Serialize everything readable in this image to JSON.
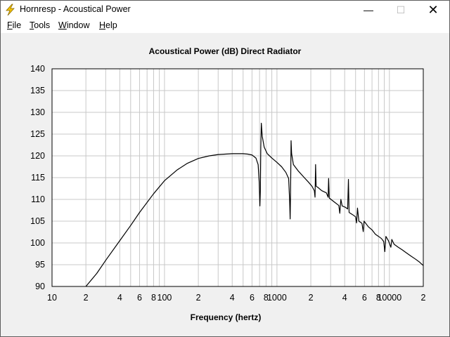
{
  "window": {
    "title": "Hornresp - Acoustical Power",
    "min_label": "—",
    "max_label": "☐",
    "close_label": "✕"
  },
  "menu": [
    {
      "label": "File",
      "u": "F",
      "rest": "ile"
    },
    {
      "label": "Tools",
      "u": "T",
      "rest": "ools"
    },
    {
      "label": "Window",
      "u": "W",
      "rest": "indow"
    },
    {
      "label": "Help",
      "u": "H",
      "rest": "elp"
    }
  ],
  "colors": {
    "background": "#f0f0f0",
    "plot_area": "#ffffff",
    "grid": "#c8c8c8",
    "curve": "#000000",
    "icon": "#f5c400"
  },
  "chart_data": {
    "type": "line",
    "title": "Acoustical Power (dB)   Direct Radiator",
    "xlabel": "Frequency (hertz)",
    "ylabel": "",
    "x_scale": "log",
    "xlim": [
      10,
      20000
    ],
    "ylim": [
      90,
      140
    ],
    "grid": true,
    "legend": "none",
    "x_tick_labels": [
      {
        "value": 10,
        "label": "10"
      },
      {
        "value": 20,
        "label": "2"
      },
      {
        "value": 40,
        "label": "4"
      },
      {
        "value": 60,
        "label": "6"
      },
      {
        "value": 80,
        "label": "8"
      },
      {
        "value": 100,
        "label": "100"
      },
      {
        "value": 200,
        "label": "2"
      },
      {
        "value": 400,
        "label": "4"
      },
      {
        "value": 600,
        "label": "6"
      },
      {
        "value": 800,
        "label": "8"
      },
      {
        "value": 1000,
        "label": "1000"
      },
      {
        "value": 2000,
        "label": "2"
      },
      {
        "value": 4000,
        "label": "4"
      },
      {
        "value": 6000,
        "label": "6"
      },
      {
        "value": 8000,
        "label": "8"
      },
      {
        "value": 10000,
        "label": "10000"
      },
      {
        "value": 20000,
        "label": "2"
      }
    ],
    "y_ticks": [
      140,
      135,
      130,
      125,
      120,
      115,
      110,
      105,
      100,
      95,
      90
    ],
    "series": [
      {
        "color": "#000000",
        "points": [
          [
            20,
            90.0
          ],
          [
            25,
            93.0
          ],
          [
            30,
            96.0
          ],
          [
            40,
            100.5
          ],
          [
            50,
            104.0
          ],
          [
            60,
            107.0
          ],
          [
            80,
            111.3
          ],
          [
            100,
            114.3
          ],
          [
            130,
            116.8
          ],
          [
            160,
            118.3
          ],
          [
            200,
            119.4
          ],
          [
            250,
            120.0
          ],
          [
            300,
            120.3
          ],
          [
            400,
            120.5
          ],
          [
            500,
            120.5
          ],
          [
            550,
            120.4
          ],
          [
            600,
            120.2
          ],
          [
            650,
            119.5
          ],
          [
            680,
            118.0
          ],
          [
            695,
            114.0
          ],
          [
            705,
            108.5
          ],
          [
            712,
            112.0
          ],
          [
            718,
            122.0
          ],
          [
            726,
            127.5
          ],
          [
            740,
            124.5
          ],
          [
            770,
            122.0
          ],
          [
            820,
            120.5
          ],
          [
            900,
            119.5
          ],
          [
            1000,
            118.5
          ],
          [
            1100,
            117.5
          ],
          [
            1200,
            116.2
          ],
          [
            1270,
            114.8
          ],
          [
            1295,
            110.0
          ],
          [
            1310,
            105.5
          ],
          [
            1322,
            112.0
          ],
          [
            1335,
            123.5
          ],
          [
            1350,
            120.5
          ],
          [
            1400,
            118.0
          ],
          [
            1550,
            116.5
          ],
          [
            1750,
            115.0
          ],
          [
            1900,
            114.0
          ],
          [
            2050,
            113.0
          ],
          [
            2150,
            112.0
          ],
          [
            2180,
            110.5
          ],
          [
            2205,
            118.0
          ],
          [
            2230,
            113.0
          ],
          [
            2300,
            112.8
          ],
          [
            2500,
            112.0
          ],
          [
            2750,
            111.5
          ],
          [
            2850,
            110.5
          ],
          [
            2880,
            114.8
          ],
          [
            2920,
            110.3
          ],
          [
            3200,
            109.5
          ],
          [
            3550,
            108.6
          ],
          [
            3620,
            106.8
          ],
          [
            3700,
            110.0
          ],
          [
            3800,
            108.5
          ],
          [
            4050,
            108.2
          ],
          [
            4250,
            107.8
          ],
          [
            4320,
            114.6
          ],
          [
            4380,
            107.0
          ],
          [
            4700,
            106.5
          ],
          [
            5000,
            106.0
          ],
          [
            5100,
            104.6
          ],
          [
            5200,
            108.0
          ],
          [
            5350,
            105.0
          ],
          [
            5700,
            104.5
          ],
          [
            5850,
            102.6
          ],
          [
            5950,
            105.0
          ],
          [
            6500,
            103.7
          ],
          [
            7000,
            103.0
          ],
          [
            7500,
            102.0
          ],
          [
            8000,
            101.5
          ],
          [
            8500,
            101.0
          ],
          [
            8900,
            100.3
          ],
          [
            9100,
            98.0
          ],
          [
            9300,
            101.5
          ],
          [
            9800,
            100.5
          ],
          [
            10300,
            99.0
          ],
          [
            10500,
            100.8
          ],
          [
            11000,
            99.7
          ],
          [
            12000,
            99.0
          ],
          [
            13000,
            98.4
          ],
          [
            14000,
            97.8
          ],
          [
            15500,
            97.0
          ],
          [
            17000,
            96.3
          ],
          [
            18500,
            95.6
          ],
          [
            20000,
            94.8
          ]
        ]
      }
    ]
  }
}
